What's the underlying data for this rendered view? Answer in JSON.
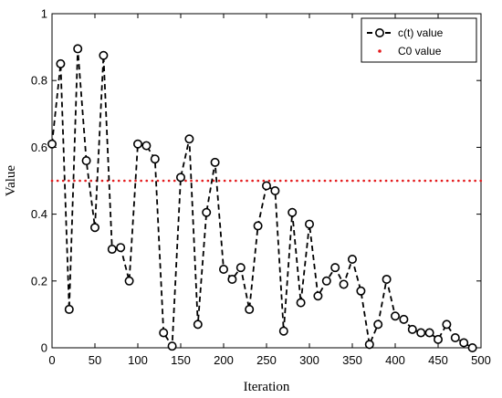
{
  "chart_data": {
    "type": "line",
    "title": "",
    "xlabel": "Iteration",
    "ylabel": "Value",
    "xlim": [
      0,
      500
    ],
    "ylim": [
      0,
      1
    ],
    "xticks": [
      0,
      50,
      100,
      150,
      200,
      250,
      300,
      350,
      400,
      450,
      500
    ],
    "yticks": [
      0,
      0.2,
      0.4,
      0.6,
      0.8,
      1
    ],
    "xtick_labels": [
      "0",
      "50",
      "100",
      "150",
      "200",
      "250",
      "300",
      "350",
      "400",
      "450",
      "500"
    ],
    "ytick_labels": [
      "0",
      "0.2",
      "0.4",
      "0.6",
      "0.8",
      "1"
    ],
    "grid": false,
    "legend_position": "top-right",
    "series": [
      {
        "name": "c(t) value",
        "style": "dashed black line with open circle markers",
        "color": "#000000",
        "x": [
          0,
          10,
          20,
          30,
          40,
          50,
          60,
          70,
          80,
          90,
          100,
          110,
          120,
          130,
          140,
          150,
          160,
          170,
          180,
          190,
          200,
          210,
          220,
          230,
          240,
          250,
          260,
          270,
          280,
          290,
          300,
          310,
          320,
          330,
          340,
          350,
          360,
          370,
          380,
          390,
          400,
          410,
          420,
          430,
          440,
          450,
          460,
          470,
          480,
          490
        ],
        "y": [
          0.61,
          0.85,
          0.115,
          0.895,
          0.56,
          0.36,
          0.875,
          0.295,
          0.3,
          0.2,
          0.61,
          0.605,
          0.565,
          0.045,
          0.005,
          0.51,
          0.625,
          0.07,
          0.405,
          0.555,
          0.235,
          0.205,
          0.24,
          0.115,
          0.365,
          0.485,
          0.47,
          0.05,
          0.405,
          0.135,
          0.37,
          0.155,
          0.2,
          0.24,
          0.19,
          0.265,
          0.17,
          0.01,
          0.07,
          0.205,
          0.095,
          0.085,
          0.055,
          0.045,
          0.045,
          0.025,
          0.07,
          0.03,
          0.015,
          0.0
        ]
      },
      {
        "name": "C0 value",
        "style": "dotted red line",
        "color": "#e41a1c",
        "x": [
          0,
          500
        ],
        "y": [
          0.5,
          0.5
        ]
      }
    ]
  }
}
